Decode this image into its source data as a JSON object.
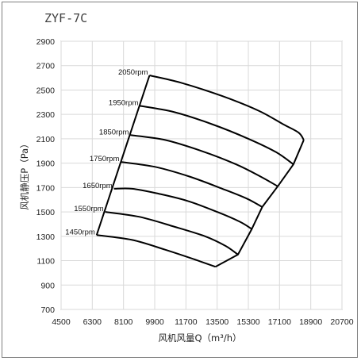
{
  "chart_data": {
    "type": "line",
    "title": "ZYF-7C",
    "xlabel": "风机风量Q（m³/h）",
    "ylabel": "风机静压P（Pa）",
    "xlim": [
      4500,
      20700
    ],
    "ylim": [
      700,
      2900
    ],
    "xticks": [
      4500,
      6300,
      8100,
      9900,
      11700,
      13500,
      15300,
      17100,
      18900,
      20700
    ],
    "yticks": [
      700,
      900,
      1100,
      1300,
      1500,
      1700,
      1900,
      2100,
      2300,
      2500,
      2700,
      2900
    ],
    "grid": true,
    "series": [
      {
        "name": "2050rpm",
        "x": [
          9600,
          11400,
          13800,
          15900,
          17300,
          18200,
          18500
        ],
        "y": [
          2620,
          2560,
          2450,
          2330,
          2220,
          2150,
          2090
        ]
      },
      {
        "name": "1950rpm",
        "x": [
          9050,
          11000,
          13200,
          15300,
          16900,
          17900
        ],
        "y": [
          2370,
          2320,
          2220,
          2100,
          1990,
          1890
        ]
      },
      {
        "name": "1850rpm",
        "x": [
          8500,
          10500,
          12600,
          14600,
          16000,
          17000
        ],
        "y": [
          2130,
          2090,
          2000,
          1890,
          1790,
          1710
        ]
      },
      {
        "name": "1750rpm",
        "x": [
          7950,
          9900,
          11900,
          13800,
          15200,
          16100
        ],
        "y": [
          1910,
          1870,
          1790,
          1690,
          1610,
          1540
        ]
      },
      {
        "name": "1650rpm",
        "x": [
          7550,
          8600,
          10100,
          11800,
          13500,
          14800,
          15500
        ],
        "y": [
          1690,
          1690,
          1650,
          1590,
          1500,
          1420,
          1360
        ]
      },
      {
        "name": "1550rpm",
        "x": [
          7050,
          9000,
          11000,
          12800,
          14000,
          14700
        ],
        "y": [
          1500,
          1460,
          1380,
          1300,
          1220,
          1150
        ]
      },
      {
        "name": "1450rpm",
        "x": [
          6550,
          8600,
          10500,
          12200,
          13400
        ],
        "y": [
          1310,
          1270,
          1190,
          1110,
          1050
        ]
      }
    ],
    "envelope": {
      "left_x": [
        6550,
        9600
      ],
      "left_y": [
        1310,
        2620
      ]
    }
  }
}
